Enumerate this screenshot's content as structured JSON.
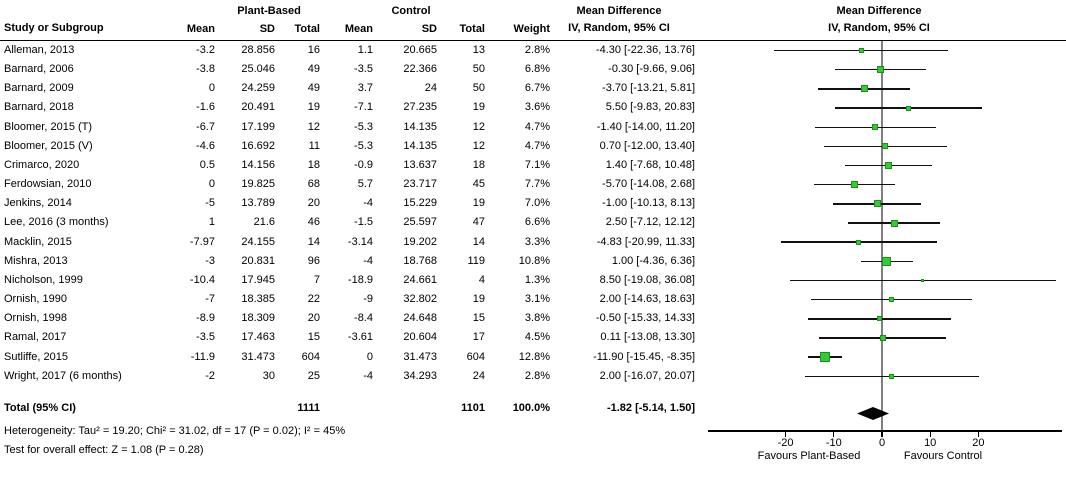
{
  "groups": {
    "treatment": "Plant-Based",
    "control": "Control"
  },
  "columns": {
    "study": "Study or Subgroup",
    "mean": "Mean",
    "sd": "SD",
    "total": "Total",
    "weight": "Weight"
  },
  "md_header": {
    "line1": "Mean Difference",
    "line2": "IV, Random, 95% CI"
  },
  "plot_header": {
    "line1": "Mean Difference",
    "line2": "IV, Random, 95% CI"
  },
  "chart_data": {
    "type": "forest",
    "effect_measure": "Mean Difference (IV, Random, 95% CI)",
    "x_ticks": [
      -20,
      -10,
      0,
      10,
      20
    ],
    "x_range": [
      -36,
      37.5
    ],
    "favours_left": "Favours Plant-Based",
    "favours_right": "Favours Control",
    "studies": [
      {
        "name": "Alleman, 2013",
        "mean1": "-3.2",
        "sd1": "28.856",
        "n1": "16",
        "mean2": "1.1",
        "sd2": "20.665",
        "n2": "13",
        "weight": "2.8%",
        "md_label": "-4.30 [-22.36, 13.76]",
        "md": -4.3,
        "lo": -22.36,
        "hi": 13.76
      },
      {
        "name": "Barnard, 2006",
        "mean1": "-3.8",
        "sd1": "25.046",
        "n1": "49",
        "mean2": "-3.5",
        "sd2": "22.366",
        "n2": "50",
        "weight": "6.8%",
        "md_label": "-0.30 [-9.66, 9.06]",
        "md": -0.3,
        "lo": -9.66,
        "hi": 9.06
      },
      {
        "name": "Barnard, 2009",
        "mean1": "0",
        "sd1": "24.259",
        "n1": "49",
        "mean2": "3.7",
        "sd2": "24",
        "n2": "50",
        "weight": "6.7%",
        "md_label": "-3.70 [-13.21, 5.81]",
        "md": -3.7,
        "lo": -13.21,
        "hi": 5.81
      },
      {
        "name": "Barnard, 2018",
        "mean1": "-1.6",
        "sd1": "20.491",
        "n1": "19",
        "mean2": "-7.1",
        "sd2": "27.235",
        "n2": "19",
        "weight": "3.6%",
        "md_label": "5.50 [-9.83, 20.83]",
        "md": 5.5,
        "lo": -9.83,
        "hi": 20.83
      },
      {
        "name": "Bloomer, 2015 (T)",
        "mean1": "-6.7",
        "sd1": "17.199",
        "n1": "12",
        "mean2": "-5.3",
        "sd2": "14.135",
        "n2": "12",
        "weight": "4.7%",
        "md_label": "-1.40 [-14.00, 11.20]",
        "md": -1.4,
        "lo": -14.0,
        "hi": 11.2
      },
      {
        "name": "Bloomer, 2015 (V)",
        "mean1": "-4.6",
        "sd1": "16.692",
        "n1": "11",
        "mean2": "-5.3",
        "sd2": "14.135",
        "n2": "12",
        "weight": "4.7%",
        "md_label": "0.70 [-12.00, 13.40]",
        "md": 0.7,
        "lo": -12.0,
        "hi": 13.4
      },
      {
        "name": "Crimarco, 2020",
        "mean1": "0.5",
        "sd1": "14.156",
        "n1": "18",
        "mean2": "-0.9",
        "sd2": "13.637",
        "n2": "18",
        "weight": "7.1%",
        "md_label": "1.40 [-7.68, 10.48]",
        "md": 1.4,
        "lo": -7.68,
        "hi": 10.48
      },
      {
        "name": "Ferdowsian, 2010",
        "mean1": "0",
        "sd1": "19.825",
        "n1": "68",
        "mean2": "5.7",
        "sd2": "23.717",
        "n2": "45",
        "weight": "7.7%",
        "md_label": "-5.70 [-14.08, 2.68]",
        "md": -5.7,
        "lo": -14.08,
        "hi": 2.68
      },
      {
        "name": "Jenkins, 2014",
        "mean1": "-5",
        "sd1": "13.789",
        "n1": "20",
        "mean2": "-4",
        "sd2": "15.229",
        "n2": "19",
        "weight": "7.0%",
        "md_label": "-1.00 [-10.13, 8.13]",
        "md": -1.0,
        "lo": -10.13,
        "hi": 8.13
      },
      {
        "name": "Lee, 2016 (3 months)",
        "mean1": "1",
        "sd1": "21.6",
        "n1": "46",
        "mean2": "-1.5",
        "sd2": "25.597",
        "n2": "47",
        "weight": "6.6%",
        "md_label": "2.50 [-7.12, 12.12]",
        "md": 2.5,
        "lo": -7.12,
        "hi": 12.12
      },
      {
        "name": "Macklin, 2015",
        "mean1": "-7.97",
        "sd1": "24.155",
        "n1": "14",
        "mean2": "-3.14",
        "sd2": "19.202",
        "n2": "14",
        "weight": "3.3%",
        "md_label": "-4.83 [-20.99, 11.33]",
        "md": -4.83,
        "lo": -20.99,
        "hi": 11.33
      },
      {
        "name": "Mishra, 2013",
        "mean1": "-3",
        "sd1": "20.831",
        "n1": "96",
        "mean2": "-4",
        "sd2": "18.768",
        "n2": "119",
        "weight": "10.8%",
        "md_label": "1.00 [-4.36, 6.36]",
        "md": 1.0,
        "lo": -4.36,
        "hi": 6.36
      },
      {
        "name": "Nicholson, 1999",
        "mean1": "-10.4",
        "sd1": "17.945",
        "n1": "7",
        "mean2": "-18.9",
        "sd2": "24.661",
        "n2": "4",
        "weight": "1.3%",
        "md_label": "8.50 [-19.08, 36.08]",
        "md": 8.5,
        "lo": -19.08,
        "hi": 36.08
      },
      {
        "name": "Ornish, 1990",
        "mean1": "-7",
        "sd1": "18.385",
        "n1": "22",
        "mean2": "-9",
        "sd2": "32.802",
        "n2": "19",
        "weight": "3.1%",
        "md_label": "2.00 [-14.63, 18.63]",
        "md": 2.0,
        "lo": -14.63,
        "hi": 18.63
      },
      {
        "name": "Ornish, 1998",
        "mean1": "-8.9",
        "sd1": "18.309",
        "n1": "20",
        "mean2": "-8.4",
        "sd2": "24.648",
        "n2": "15",
        "weight": "3.8%",
        "md_label": "-0.50 [-15.33, 14.33]",
        "md": -0.5,
        "lo": -15.33,
        "hi": 14.33
      },
      {
        "name": "Ramal, 2017",
        "mean1": "-3.5",
        "sd1": "17.463",
        "n1": "15",
        "mean2": "-3.61",
        "sd2": "20.604",
        "n2": "17",
        "weight": "4.5%",
        "md_label": "0.11 [-13.08, 13.30]",
        "md": 0.11,
        "lo": -13.08,
        "hi": 13.3
      },
      {
        "name": "Sutliffe, 2015",
        "mean1": "-11.9",
        "sd1": "31.473",
        "n1": "604",
        "mean2": "0",
        "sd2": "31.473",
        "n2": "604",
        "weight": "12.8%",
        "md_label": "-11.90 [-15.45, -8.35]",
        "md": -11.9,
        "lo": -15.45,
        "hi": -8.35
      },
      {
        "name": "Wright, 2017 (6 months)",
        "mean1": "-2",
        "sd1": "30",
        "n1": "25",
        "mean2": "-4",
        "sd2": "34.293",
        "n2": "24",
        "weight": "2.8%",
        "md_label": "2.00 [-16.07, 20.07]",
        "md": 2.0,
        "lo": -16.07,
        "hi": 20.07
      }
    ],
    "total": {
      "label": "Total (95% CI)",
      "n1": "1111",
      "n2": "1101",
      "weight": "100.0%",
      "md_label": "-1.82 [-5.14, 1.50]",
      "md": -1.82,
      "lo": -5.14,
      "hi": 1.5
    },
    "heterogeneity": "Heterogeneity: Tau² = 19.20; Chi² = 31.02, df = 17 (P = 0.02); I² = 45%",
    "overall_effect": "Test for overall effect: Z = 1.08 (P = 0.28)"
  },
  "colors": {
    "square_fill": "#33CC33",
    "square_border": "#1E8F1E",
    "ci_line": "#111111",
    "zero_line": "#808080",
    "diamond": "#000000"
  }
}
